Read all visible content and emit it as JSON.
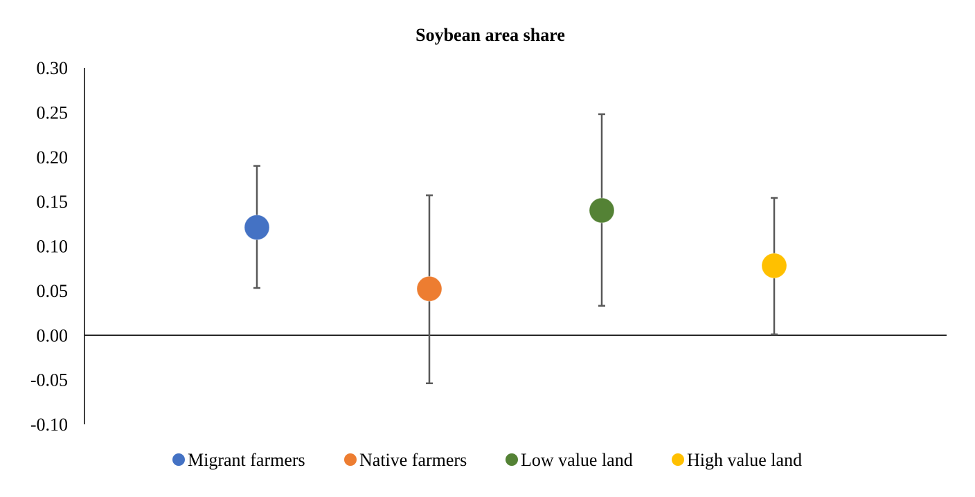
{
  "chart_data": {
    "type": "scatter",
    "title": "Soybean area share",
    "xlabel": "",
    "ylabel": "",
    "ylim": [
      -0.1,
      0.3
    ],
    "yticks": [
      "-0.10",
      "-0.05",
      "0.00",
      "0.05",
      "0.10",
      "0.15",
      "0.20",
      "0.25",
      "0.30"
    ],
    "grid": false,
    "legend_position": "bottom",
    "series": [
      {
        "name": "Migrant farmers",
        "value": 0.121,
        "ci_low": 0.053,
        "ci_high": 0.19,
        "color": "#4472C4"
      },
      {
        "name": "Native farmers",
        "value": 0.052,
        "ci_low": -0.054,
        "ci_high": 0.157,
        "color": "#ED7D31"
      },
      {
        "name": "Low value land",
        "value": 0.14,
        "ci_low": 0.033,
        "ci_high": 0.248,
        "color": "#548235"
      },
      {
        "name": "High value land",
        "value": 0.078,
        "ci_low": 0.001,
        "ci_high": 0.154,
        "color": "#FFC000"
      }
    ]
  },
  "colors": {
    "axis": "#000000",
    "error_bar": "#595959",
    "background": "#ffffff"
  }
}
